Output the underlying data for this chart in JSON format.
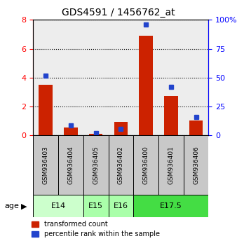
{
  "title": "GDS4591 / 1456762_at",
  "samples": [
    "GSM936403",
    "GSM936404",
    "GSM936405",
    "GSM936402",
    "GSM936400",
    "GSM936401",
    "GSM936406"
  ],
  "transformed_count": [
    3.5,
    0.55,
    0.12,
    0.95,
    6.9,
    2.75,
    1.05
  ],
  "percentile_rank": [
    52,
    9,
    2,
    6,
    96,
    42,
    16
  ],
  "age_groups": [
    {
      "label": "E14",
      "start": 0,
      "end": 2,
      "color": "#ccffcc"
    },
    {
      "label": "E15",
      "start": 2,
      "end": 3,
      "color": "#aaffaa"
    },
    {
      "label": "E16",
      "start": 3,
      "end": 4,
      "color": "#aaffaa"
    },
    {
      "label": "E17.5",
      "start": 4,
      "end": 7,
      "color": "#44dd44"
    }
  ],
  "bar_color_red": "#cc2200",
  "bar_color_blue": "#2244cc",
  "ylim_left": [
    0,
    8
  ],
  "ylim_right": [
    0,
    100
  ],
  "yticks_left": [
    0,
    2,
    4,
    6,
    8
  ],
  "yticks_right": [
    0,
    25,
    50,
    75,
    100
  ],
  "legend_red": "transformed count",
  "legend_blue": "percentile rank within the sample",
  "bar_width": 0.55,
  "age_label": "age",
  "sample_box_color": "#c8c8c8",
  "plot_bg": "#ffffff",
  "grid_color": "#000000",
  "title_fontsize": 10,
  "tick_fontsize": 8,
  "label_fontsize": 8
}
